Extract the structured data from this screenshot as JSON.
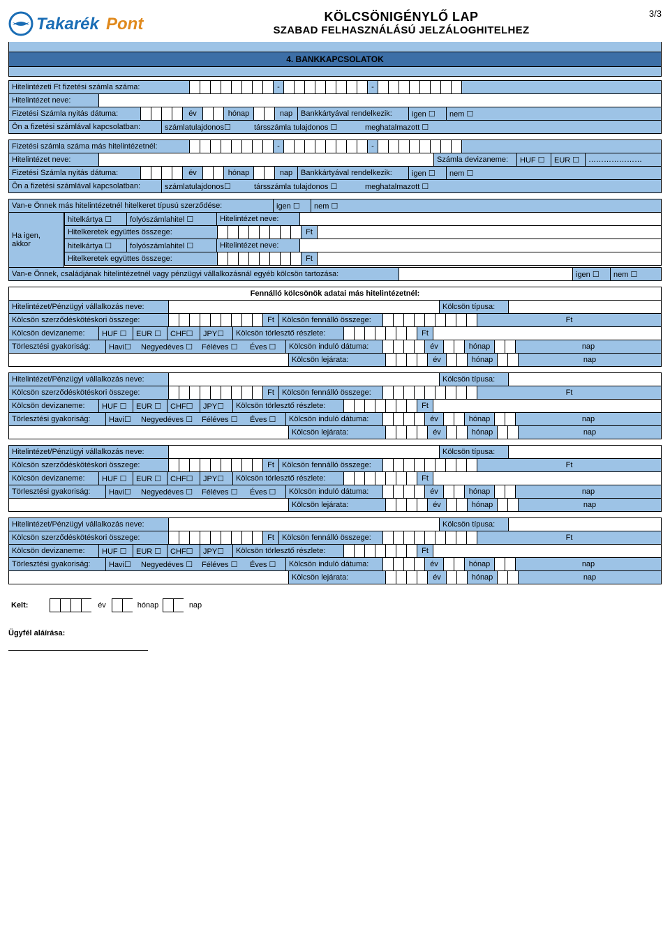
{
  "meta": {
    "page_indicator": "3/3"
  },
  "header": {
    "logo_text_light": "Takarék",
    "logo_text_accent": "Pont",
    "title_main": "KÖLCSÖNIGÉNYLŐ LAP",
    "title_sub": "SZABAD FELHASZNÁLÁSÚ JELZÁLOGHITELHEZ"
  },
  "section4": {
    "title": "4. BANKKAPCSOLATOK"
  },
  "labels": {
    "acct_no_self": "Hitelintézeti Ft fizetési számla száma:",
    "bank_name": "Hitelintézet neve:",
    "open_date": "Fizetési Számla nyitás dátuma:",
    "has_card": "Bankkártyával rendelkezik:",
    "yes": "igen ☐",
    "no": "nem ☐",
    "relation": "Ön a fizetési számlával kapcsolatban:",
    "owner": "számlatulajdonos☐",
    "coowner": "társszámla tulajdonos ☐",
    "auth": "meghatalmazott ☐",
    "acct_no_other": "Fizetési számla száma más hitelintézetnél:",
    "currency": "Számla devizaneme:",
    "huf": "HUF ☐",
    "eur": "EUR ☐",
    "dots": "…………………",
    "ev": "év",
    "honap": "hónap",
    "nap": "nap",
    "has_frame": "Van-e Önnek más hitelintézetnél hitelkeret típusú szerződése:",
    "ha_igen": "Ha igen, akkor",
    "card": "hitelkártya ☐",
    "overdraft": "folyószámlahitel ☐",
    "frame_sum": "Hitelkeretek együttes összege:",
    "ft": "Ft",
    "has_other_loan": "Van-e Önnek, családjának hitelintézetnél vagy pénzügyi vállalkozásnál egyéb kölcsön tartozása:",
    "fennallo": "Fennálló kölcsönök adatai más hitelintézetnél:",
    "inst_name": "Hitelintézet/Pénzügyi vállalkozás neve:",
    "loan_type": "Kölcsön típusa:",
    "contract_amt": "Kölcsön szerződéskötéskori összege:",
    "outstanding": "Kölcsön fennálló összege:",
    "loan_curr": "Kölcsön devizaneme:",
    "chf": "CHF☐",
    "jpy": "JPY☐",
    "installment": "Kölcsön törlesztő részlete:",
    "freq": "Törlesztési gyakoriság:",
    "havi": "Havi☐",
    "negyed": "Negyedéves ☐",
    "fel": "Féléves ☐",
    "eves": "Éves ☐",
    "start": "Kölcsön induló dátuma:",
    "end": "Kölcsön lejárata:",
    "kelt": "Kelt:",
    "sign": "Ügyfél aláírása:",
    "dash": "-"
  },
  "colors": {
    "blue": "#9dc3e6",
    "darkblue": "#3d6fa7",
    "border": "#000000",
    "logo_blue": "#1a6db5",
    "logo_orange": "#e08a1e"
  }
}
